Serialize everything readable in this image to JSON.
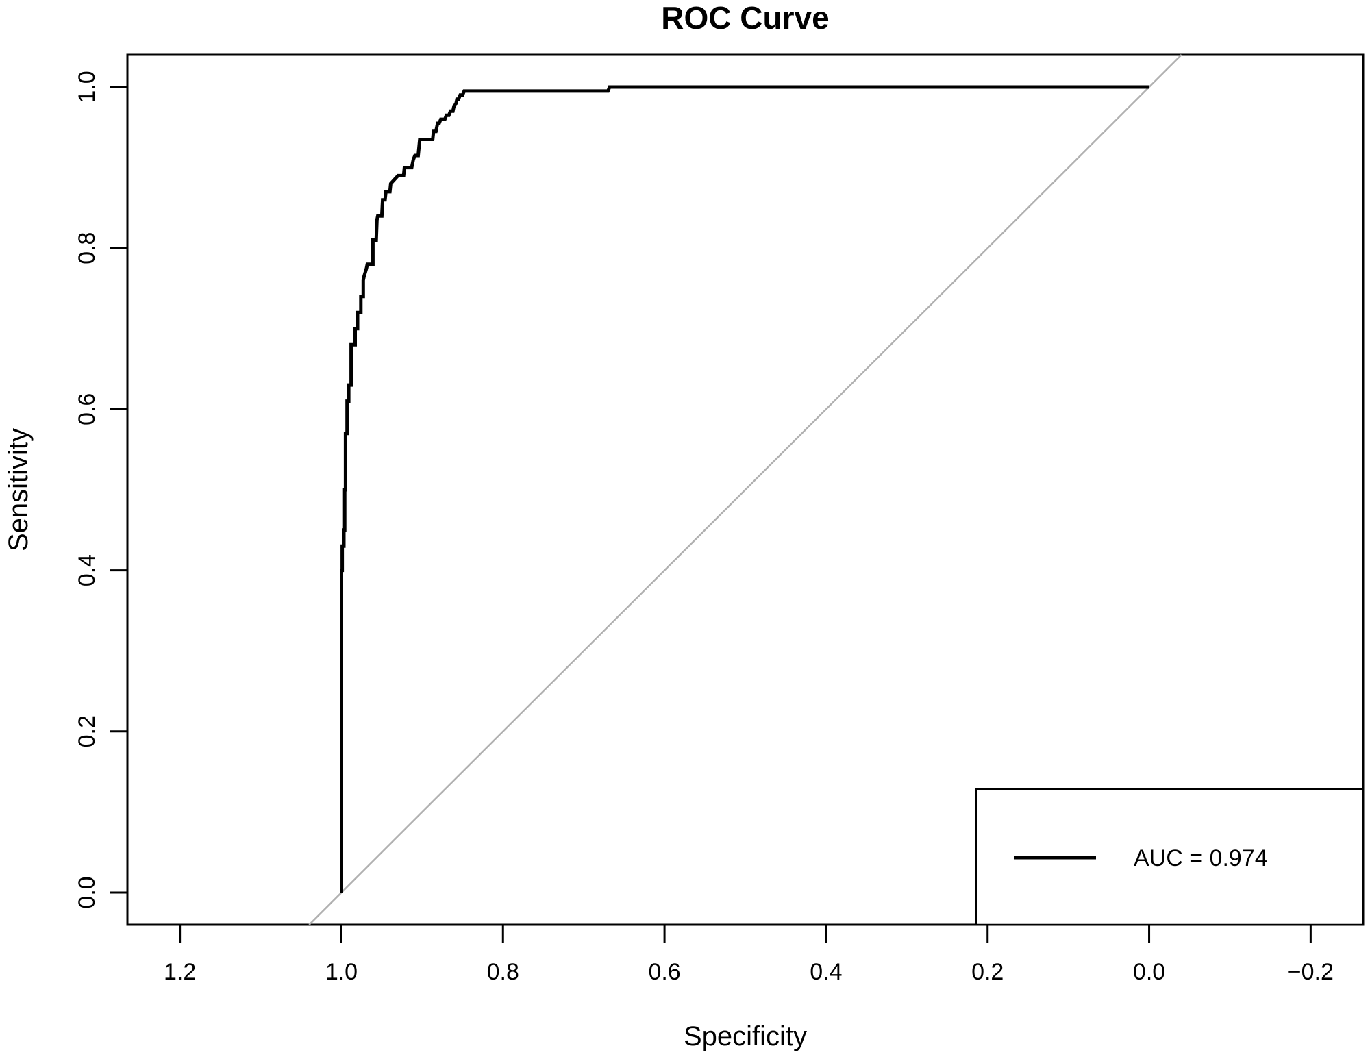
{
  "chart_data": {
    "type": "line",
    "title": "ROC Curve",
    "xlabel": "Specificity",
    "ylabel": "Sensitivity",
    "x_reversed": true,
    "xlim": [
      1.265,
      -0.265
    ],
    "ylim": [
      -0.04,
      1.04
    ],
    "x_ticks": [
      {
        "value": 1.2,
        "label": "1.2"
      },
      {
        "value": 1.0,
        "label": "1.0"
      },
      {
        "value": 0.8,
        "label": "0.8"
      },
      {
        "value": 0.6,
        "label": "0.6"
      },
      {
        "value": 0.4,
        "label": "0.4"
      },
      {
        "value": 0.2,
        "label": "0.2"
      },
      {
        "value": 0.0,
        "label": "0.0"
      },
      {
        "value": -0.2,
        "label": "−0.2"
      }
    ],
    "y_ticks": [
      {
        "value": 0.0,
        "label": "0.0"
      },
      {
        "value": 0.2,
        "label": "0.2"
      },
      {
        "value": 0.4,
        "label": "0.4"
      },
      {
        "value": 0.6,
        "label": "0.6"
      },
      {
        "value": 0.8,
        "label": "0.8"
      },
      {
        "value": 1.0,
        "label": "1.0"
      }
    ],
    "grid": false,
    "legend": {
      "position": "bottom-right",
      "entries": [
        "AUC = 0.974"
      ]
    },
    "reference_line": {
      "from": [
        1.0,
        0.0
      ],
      "to": [
        0.0,
        1.0
      ],
      "color": "#b0b0b0"
    },
    "colors": {
      "curve": "#000000",
      "reference": "#b0b0b0",
      "axis": "#000000"
    },
    "series": [
      {
        "name": "AUC = 0.974",
        "specificity": [
          1.0,
          1.0,
          0.999,
          0.999,
          0.997,
          0.997,
          0.996,
          0.996,
          0.995,
          0.995,
          0.993,
          0.993,
          0.991,
          0.991,
          0.988,
          0.988,
          0.983,
          0.983,
          0.98,
          0.98,
          0.976,
          0.976,
          0.973,
          0.973,
          0.972,
          0.969,
          0.968,
          0.963,
          0.961,
          0.961,
          0.957,
          0.956,
          0.955,
          0.95,
          0.949,
          0.946,
          0.945,
          0.94,
          0.939,
          0.93,
          0.928,
          0.923,
          0.922,
          0.913,
          0.911,
          0.909,
          0.905,
          0.903,
          0.898,
          0.887,
          0.886,
          0.883,
          0.881,
          0.879,
          0.877,
          0.872,
          0.87,
          0.867,
          0.865,
          0.862,
          0.861,
          0.858,
          0.857,
          0.855,
          0.853,
          0.85,
          0.848,
          0.67,
          0.668,
          0.0
        ],
        "sensitivity": [
          0.0,
          0.4,
          0.4,
          0.43,
          0.43,
          0.45,
          0.45,
          0.5,
          0.5,
          0.57,
          0.57,
          0.61,
          0.61,
          0.63,
          0.63,
          0.68,
          0.68,
          0.7,
          0.7,
          0.72,
          0.72,
          0.74,
          0.74,
          0.76,
          0.765,
          0.775,
          0.78,
          0.78,
          0.78,
          0.81,
          0.81,
          0.835,
          0.84,
          0.84,
          0.86,
          0.86,
          0.87,
          0.87,
          0.88,
          0.89,
          0.89,
          0.89,
          0.9,
          0.9,
          0.91,
          0.915,
          0.915,
          0.935,
          0.935,
          0.935,
          0.945,
          0.945,
          0.955,
          0.955,
          0.96,
          0.96,
          0.965,
          0.965,
          0.97,
          0.97,
          0.975,
          0.98,
          0.985,
          0.985,
          0.99,
          0.99,
          0.995,
          0.995,
          1.0,
          1.0
        ]
      }
    ]
  }
}
